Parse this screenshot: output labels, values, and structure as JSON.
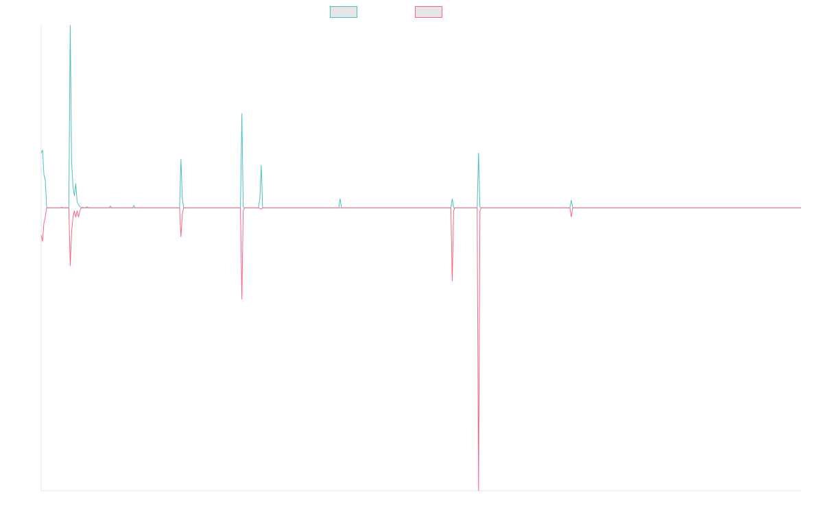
{
  "chart_data": {
    "type": "line",
    "title": "",
    "xlabel": "",
    "ylabel": "",
    "legend": {
      "position": "top-center",
      "show_labels": false
    },
    "grid": false,
    "x_count": 550,
    "ylim": [
      -0.93,
      0.6
    ],
    "baseline": 0,
    "series": [
      {
        "color": "#4bc0c0",
        "fill": "#e5e5e5",
        "points": [
          [
            0,
            0.18
          ],
          [
            1,
            0.19
          ],
          [
            2,
            0.11
          ],
          [
            3,
            0.09
          ],
          [
            4,
            0.0
          ],
          [
            5,
            0.0
          ],
          [
            14,
            0.0
          ],
          [
            15,
            0.002
          ],
          [
            16,
            0.0
          ],
          [
            20,
            0.0
          ],
          [
            21,
            0.6
          ],
          [
            22,
            0.15
          ],
          [
            23,
            0.07
          ],
          [
            24,
            0.04
          ],
          [
            25,
            0.08
          ],
          [
            26,
            0.02
          ],
          [
            27,
            0.01
          ],
          [
            28,
            0.004
          ],
          [
            30,
            0.002
          ],
          [
            33,
            0.004
          ],
          [
            34,
            0.001
          ],
          [
            35,
            0.0
          ],
          [
            49,
            0.0
          ],
          [
            50,
            0.006
          ],
          [
            51,
            0.0
          ],
          [
            66,
            0.0
          ],
          [
            67,
            0.008
          ],
          [
            68,
            0.0
          ],
          [
            100,
            0.0
          ],
          [
            101,
            0.16
          ],
          [
            102,
            0.03
          ],
          [
            103,
            0.0
          ],
          [
            144,
            0.0
          ],
          [
            145,
            0.31
          ],
          [
            146,
            0.002
          ],
          [
            157,
            0.0
          ],
          [
            158,
            0.03
          ],
          [
            159,
            0.14
          ],
          [
            160,
            0.0
          ],
          [
            215,
            0.0
          ],
          [
            216,
            0.03
          ],
          [
            217,
            0.0
          ],
          [
            296,
            0.0
          ],
          [
            297,
            0.03
          ],
          [
            298,
            0.0
          ],
          [
            315,
            0.0
          ],
          [
            316,
            0.18
          ],
          [
            317,
            0.002
          ],
          [
            318,
            0.0
          ],
          [
            382,
            0.0
          ],
          [
            383,
            0.025
          ],
          [
            384,
            0.0
          ],
          [
            549,
            0.0
          ]
        ]
      },
      {
        "color": "#ff6384",
        "fill": "#e5e5e5",
        "points": [
          [
            0,
            -0.09
          ],
          [
            1,
            -0.11
          ],
          [
            2,
            -0.05
          ],
          [
            3,
            -0.03
          ],
          [
            4,
            0.0
          ],
          [
            20,
            0.0
          ],
          [
            21,
            -0.19
          ],
          [
            22,
            -0.08
          ],
          [
            23,
            -0.03
          ],
          [
            24,
            -0.01
          ],
          [
            25,
            -0.03
          ],
          [
            26,
            -0.01
          ],
          [
            27,
            -0.03
          ],
          [
            28,
            -0.01
          ],
          [
            29,
            0.0
          ],
          [
            100,
            0.0
          ],
          [
            101,
            -0.095
          ],
          [
            102,
            -0.02
          ],
          [
            103,
            0.0
          ],
          [
            144,
            0.0
          ],
          [
            145,
            -0.3
          ],
          [
            146,
            -0.01
          ],
          [
            147,
            0.0
          ],
          [
            157,
            0.0
          ],
          [
            158,
            -0.002
          ],
          [
            159,
            -0.004
          ],
          [
            160,
            0.0
          ],
          [
            296,
            0.0
          ],
          [
            297,
            -0.24
          ],
          [
            298,
            -0.01
          ],
          [
            299,
            0.0
          ],
          [
            315,
            0.0
          ],
          [
            316,
            -0.93
          ],
          [
            317,
            -0.01
          ],
          [
            318,
            0.0
          ],
          [
            382,
            0.0
          ],
          [
            383,
            -0.03
          ],
          [
            384,
            0.0
          ],
          [
            549,
            0.0
          ]
        ]
      }
    ]
  }
}
